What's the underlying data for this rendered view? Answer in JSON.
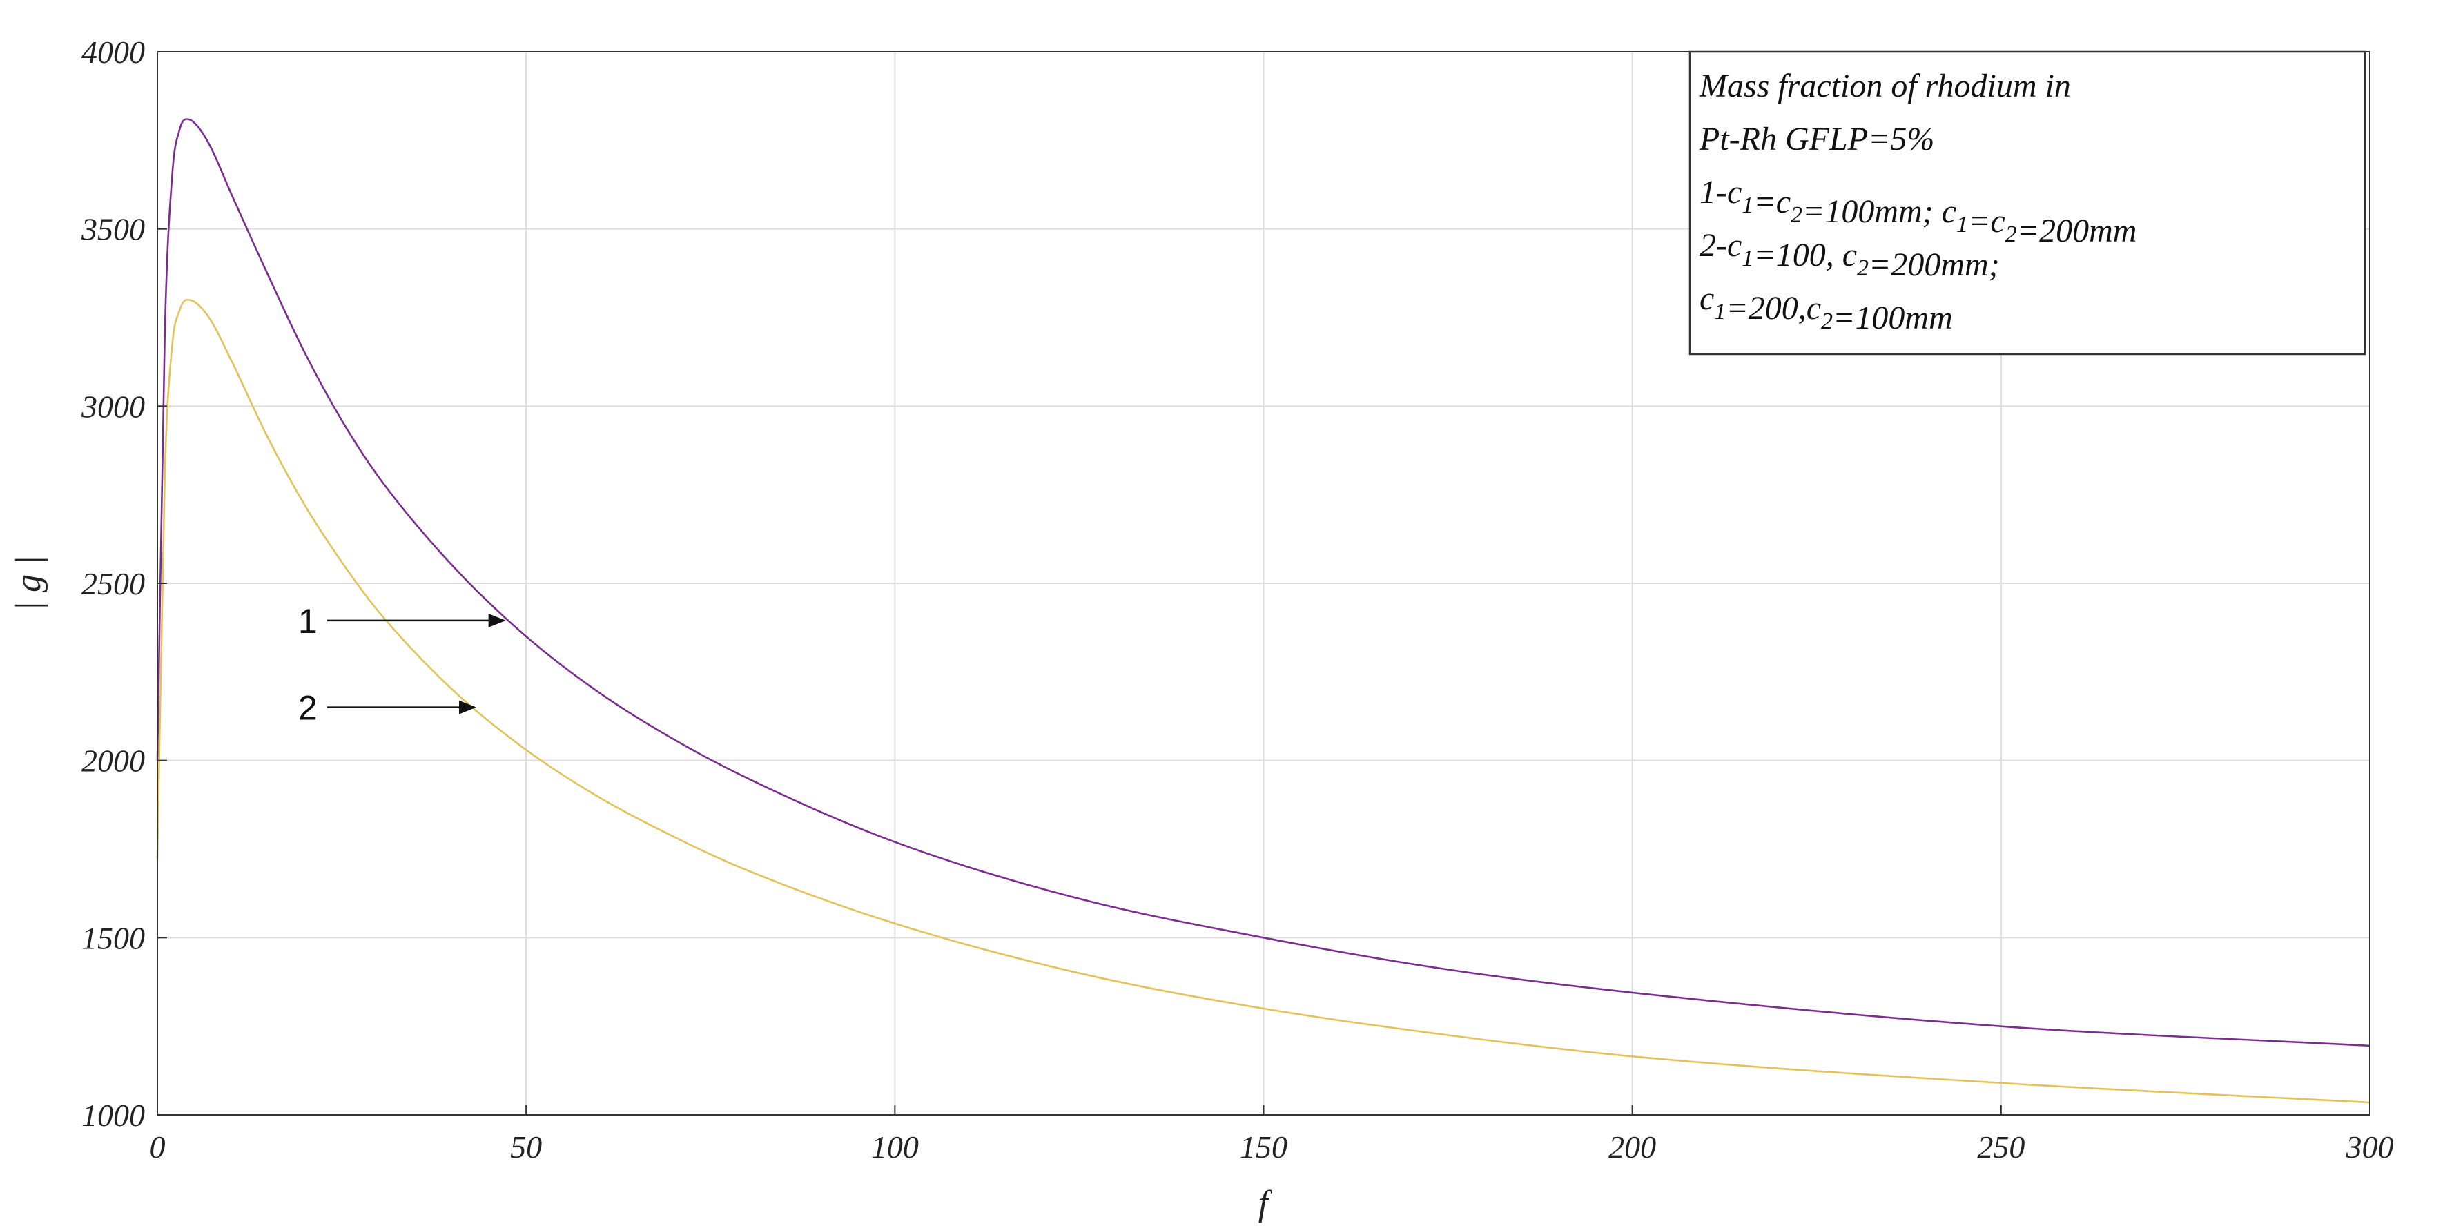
{
  "chart_data": {
    "type": "line",
    "title": "",
    "xlabel": "f",
    "ylabel": "| g |",
    "xlim": [
      0,
      300
    ],
    "ylim": [
      1000,
      4000
    ],
    "x_ticks": [
      0,
      50,
      100,
      150,
      200,
      250,
      300
    ],
    "y_ticks": [
      1000,
      1500,
      2000,
      2500,
      3000,
      3500,
      4000
    ],
    "grid": true,
    "series": [
      {
        "name": "1",
        "color": "#7b2d8f",
        "x": [
          0,
          1,
          2,
          3,
          4,
          5,
          7,
          10,
          15,
          20,
          25,
          30,
          40,
          50,
          60,
          70,
          80,
          100,
          125,
          150,
          175,
          200,
          250,
          300
        ],
        "y": [
          2000,
          3200,
          3650,
          3780,
          3810,
          3800,
          3740,
          3600,
          3370,
          3150,
          2960,
          2800,
          2550,
          2350,
          2190,
          2060,
          1950,
          1770,
          1610,
          1500,
          1410,
          1345,
          1250,
          1195
        ]
      },
      {
        "name": "2",
        "color": "#e3c25a",
        "x": [
          0,
          1,
          2,
          3,
          4,
          5,
          7,
          10,
          15,
          20,
          25,
          30,
          40,
          50,
          60,
          70,
          80,
          100,
          125,
          150,
          175,
          200,
          250,
          300
        ],
        "y": [
          1720,
          2800,
          3170,
          3270,
          3300,
          3295,
          3250,
          3130,
          2910,
          2720,
          2560,
          2420,
          2200,
          2030,
          1895,
          1785,
          1690,
          1540,
          1400,
          1300,
          1225,
          1165,
          1090,
          1035
        ]
      }
    ],
    "legend": {
      "placement": "top-right",
      "lines": [
        [
          {
            "t": "Mass fraction of rhodium in"
          }
        ],
        [
          {
            "t": "Pt-Rh GFLP=5%"
          }
        ],
        [
          {
            "t": "1-c"
          },
          {
            "t": "1",
            "sub": true
          },
          {
            "t": "=c"
          },
          {
            "t": "2",
            "sub": true
          },
          {
            "t": "=100mm; c"
          },
          {
            "t": "1",
            "sub": true
          },
          {
            "t": "=c"
          },
          {
            "t": "2",
            "sub": true
          },
          {
            "t": "=200mm"
          }
        ],
        [
          {
            "t": "2-c"
          },
          {
            "t": "1",
            "sub": true
          },
          {
            "t": "=100, c"
          },
          {
            "t": "2",
            "sub": true
          },
          {
            "t": "=200mm;"
          }
        ],
        [
          {
            "t": "c"
          },
          {
            "t": "1",
            "sub": true
          },
          {
            "t": "=200,c"
          },
          {
            "t": "2",
            "sub": true
          },
          {
            "t": "=100mm"
          }
        ]
      ]
    },
    "annotations": [
      {
        "label": "1",
        "series": 0,
        "x_from": 23,
        "x_to": 47,
        "y": 2395
      },
      {
        "label": "2",
        "series": 1,
        "x_from": 23,
        "x_to": 43,
        "y": 2150
      }
    ]
  }
}
